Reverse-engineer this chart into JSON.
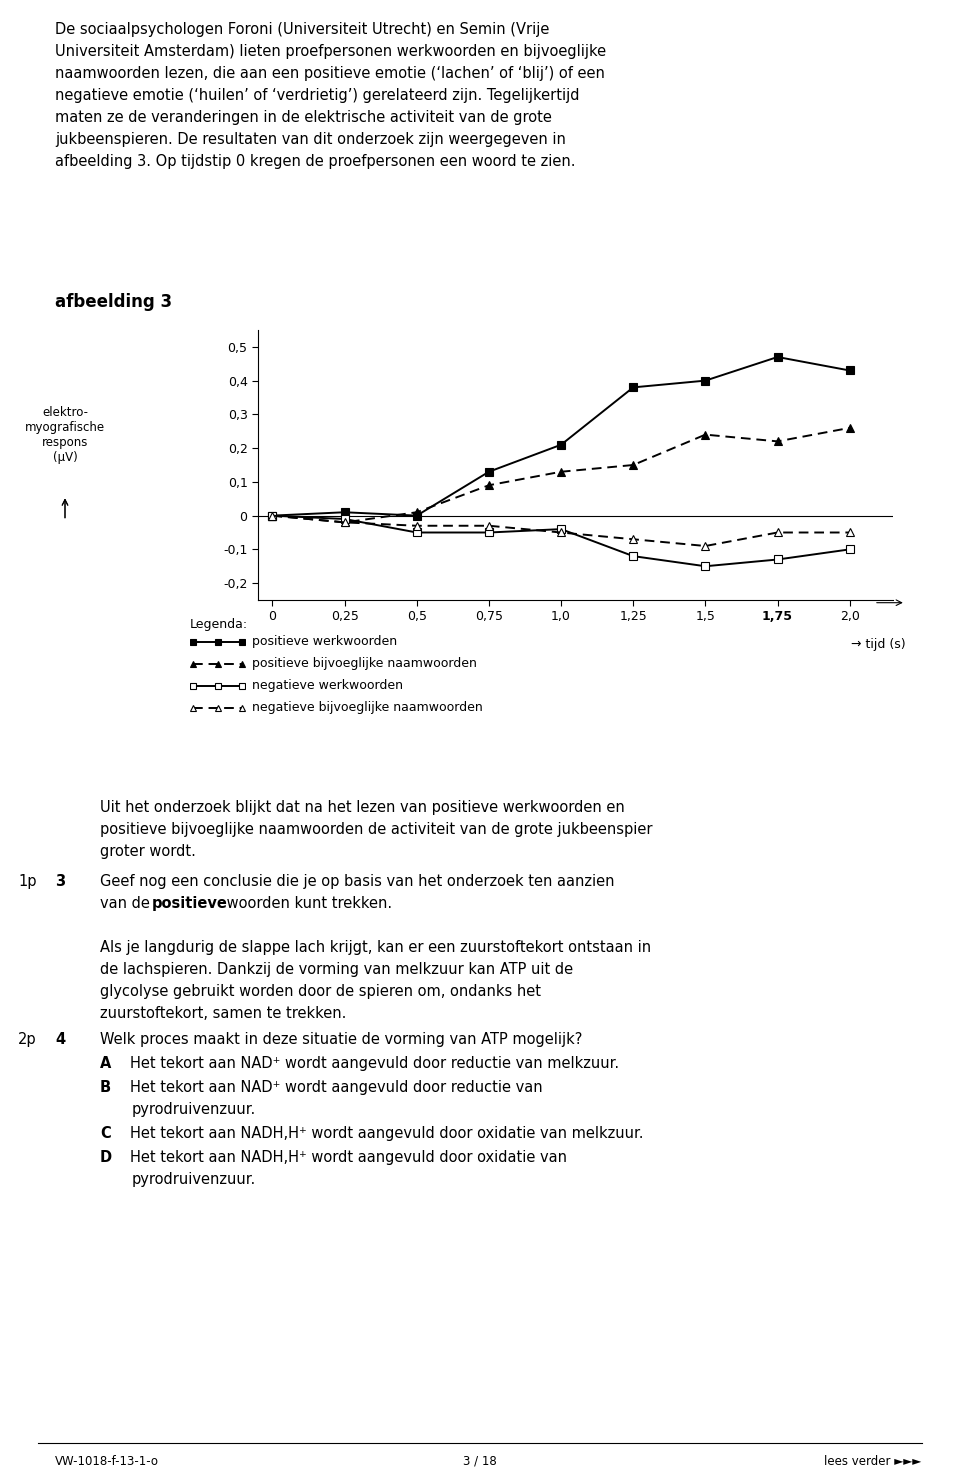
{
  "x": [
    0,
    0.25,
    0.5,
    0.75,
    1.0,
    1.25,
    1.5,
    1.75,
    2.0
  ],
  "pos_werk": [
    0.0,
    0.01,
    0.0,
    0.13,
    0.21,
    0.38,
    0.4,
    0.47,
    0.43
  ],
  "pos_bijv": [
    0.0,
    -0.02,
    0.01,
    0.09,
    0.13,
    0.15,
    0.24,
    0.22,
    0.26
  ],
  "neg_werk": [
    0.0,
    -0.01,
    -0.05,
    -0.05,
    -0.04,
    -0.12,
    -0.15,
    -0.13,
    -0.1
  ],
  "neg_bijv": [
    0.0,
    -0.02,
    -0.03,
    -0.03,
    -0.05,
    -0.07,
    -0.09,
    -0.05,
    -0.05
  ],
  "ylim": [
    -0.25,
    0.55
  ],
  "xlim": [
    -0.05,
    2.15
  ],
  "yticks": [
    -0.2,
    -0.1,
    0,
    0.1,
    0.2,
    0.3,
    0.4,
    0.5
  ],
  "xticks": [
    0,
    0.25,
    0.5,
    0.75,
    1.0,
    1.25,
    1.5,
    1.75,
    2.0
  ],
  "xlabel": "tijd (s)",
  "ylabel_line1": "elektro-",
  "ylabel_line2": "myografische",
  "ylabel_line3": "respons",
  "ylabel_line4": "(μV)",
  "chart_title": "afbeelding 3",
  "legend_title": "Legenda:",
  "legend_entries": [
    "positieve werkwoorden",
    "positieve bijvoeglijke naamwoorden",
    "negatieve werkwoorden",
    "negatieve bijvoeglijke naamwoorden"
  ],
  "body_text_1_lines": [
    "De sociaalpsychologen Foroni (Universiteit Utrecht) en Semin (Vrije",
    "Universiteit Amsterdam) lieten proefpersonen werkwoorden en bijvoeglijke",
    "naamwoorden lezen, die aan een positieve emotie (‘lachen’ of ‘blij’) of een",
    "negatieve emotie (‘huilen’ of ‘verdrietig’) gerelateerd zijn. Tegelijkertijd",
    "maten ze de veranderingen in de elektrische activiteit van de grote",
    "jukbeenspieren. De resultaten van dit onderzoek zijn weergegeven in",
    "afbeelding 3. Op tijdstip 0 kregen de proefpersonen een woord te zien."
  ],
  "body_text_2_lines": [
    "Uit het onderzoek blijkt dat na het lezen van positieve werkwoorden en",
    "positieve bijvoeglijke naamwoorden de activiteit van de grote jukbeenspier",
    "groter wordt."
  ],
  "q3_prefix": "1p",
  "q3_num": "3",
  "q3_lines": [
    "Geef nog een conclusie die je op basis van het onderzoek ten aanzien",
    "van de ​positieve​ woorden kunt trekken."
  ],
  "q3_bold_word": "positieve",
  "body_text_3_lines": [
    "Als je langdurig de slappe lach krijgt, kan er een zuurstoftekort ontstaan in",
    "de lachspieren. Dankzij de vorming van melkzuur kan ATP uit de",
    "glycolyse gebruikt worden door de spieren om, ondanks het",
    "zuurstoftekort, samen te trekken."
  ],
  "q4_prefix": "2p",
  "q4_num": "4",
  "q4_text": "Welk proces maakt in deze situatie de vorming van ATP mogelijk?",
  "answer_labels": [
    "A",
    "B",
    "C",
    "D"
  ],
  "answer_lines": [
    [
      "Het tekort aan NAD⁺ wordt aangevuld door reductie van melkzuur."
    ],
    [
      "Het tekort aan NAD⁺ wordt aangevuld door reductie van",
      "pyrodruivenzuur."
    ],
    [
      "Het tekort aan NADH,H⁺ wordt aangevuld door oxidatie van melkzuur."
    ],
    [
      "Het tekort aan NADH,H⁺ wordt aangevuld door oxidatie van",
      "pyrodruivenzuur."
    ]
  ],
  "footer_left": "VW-1018-f-13-1-o",
  "footer_center": "3 / 18",
  "footer_right": "lees verder ►►►"
}
